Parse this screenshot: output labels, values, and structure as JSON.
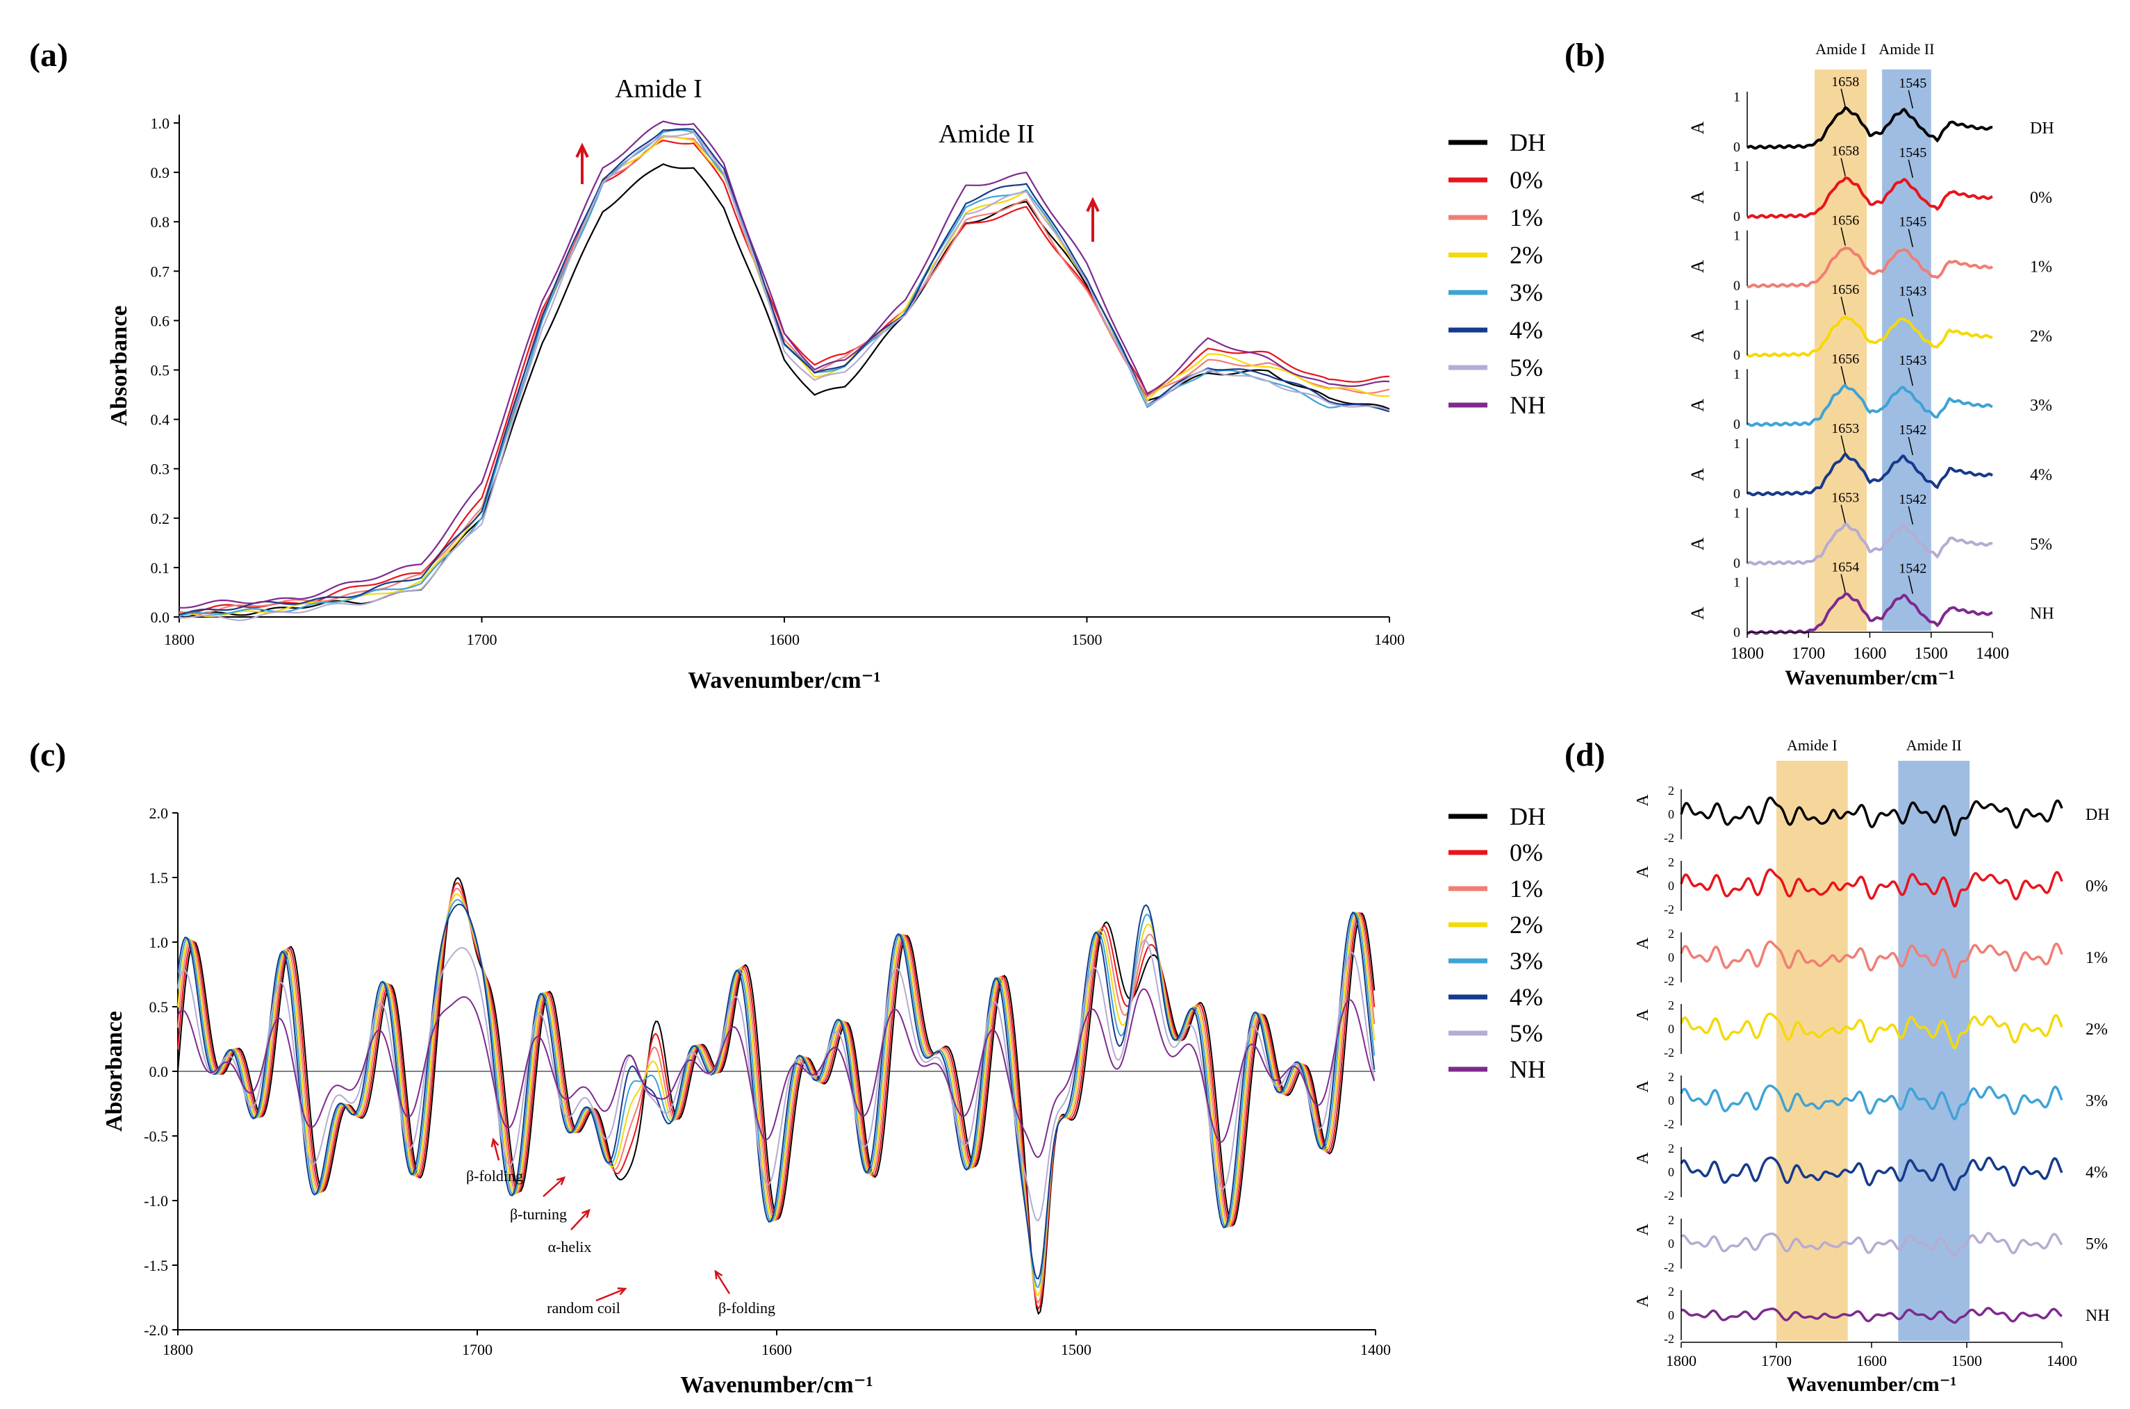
{
  "colors": {
    "DH": "#000000",
    "0%": "#e8141c",
    "1%": "#f07e74",
    "2%": "#f5d90a",
    "3%": "#3fa3d6",
    "4%": "#163a8c",
    "5%": "#b6acd2",
    "NH": "#7e2a8e",
    "amide1_band": "#f6d79b",
    "amide2_band": "#9fbde3",
    "arrow": "#d4121b"
  },
  "chart_data": [
    {
      "panel_label": "(a)",
      "type": "line",
      "xlabel": "Wavenumber/cm⁻¹",
      "ylabel": "Absorbance",
      "xlim": [
        1800,
        1400
      ],
      "ylim": [
        0,
        1.0
      ],
      "x_ticks": [
        "1800",
        "1700",
        "1600",
        "1500",
        "1400"
      ],
      "y_ticks": [
        "0.0",
        "0.1",
        "0.2",
        "0.3",
        "0.4",
        "0.5",
        "0.6",
        "0.7",
        "0.8",
        "0.9",
        "1.0"
      ],
      "annotations": [
        "Amide I",
        "Amide  II"
      ],
      "legend": [
        "DH",
        "0%",
        "1%",
        "2%",
        "3%",
        "4%",
        "5%",
        "NH"
      ],
      "series": [
        {
          "name": "DH",
          "x": [
            1800,
            1780,
            1760,
            1740,
            1720,
            1700,
            1680,
            1660,
            1640,
            1630,
            1620,
            1600,
            1590,
            1580,
            1560,
            1540,
            1520,
            1500,
            1480,
            1460,
            1440,
            1420,
            1400
          ],
          "y": [
            0.0,
            0.01,
            0.02,
            0.03,
            0.06,
            0.2,
            0.56,
            0.82,
            0.92,
            0.91,
            0.83,
            0.52,
            0.45,
            0.47,
            0.61,
            0.8,
            0.84,
            0.67,
            0.44,
            0.49,
            0.5,
            0.44,
            0.42
          ]
        },
        {
          "name": "0%",
          "x": [
            1800,
            1780,
            1760,
            1740,
            1720,
            1700,
            1680,
            1660,
            1640,
            1630,
            1620,
            1600,
            1590,
            1580,
            1560,
            1540,
            1520,
            1500,
            1480,
            1460,
            1440,
            1420,
            1400
          ],
          "y": [
            0.01,
            0.02,
            0.03,
            0.06,
            0.09,
            0.24,
            0.62,
            0.88,
            0.96,
            0.96,
            0.88,
            0.57,
            0.51,
            0.53,
            0.62,
            0.79,
            0.83,
            0.66,
            0.45,
            0.54,
            0.53,
            0.48,
            0.48
          ]
        },
        {
          "name": "1%",
          "x": [
            1800,
            1780,
            1760,
            1740,
            1720,
            1700,
            1680,
            1660,
            1640,
            1630,
            1620,
            1600,
            1590,
            1580,
            1560,
            1540,
            1520,
            1500,
            1480,
            1460,
            1440,
            1420,
            1400
          ],
          "y": [
            0.01,
            0.02,
            0.03,
            0.05,
            0.08,
            0.22,
            0.61,
            0.88,
            0.97,
            0.97,
            0.89,
            0.56,
            0.5,
            0.52,
            0.62,
            0.8,
            0.84,
            0.66,
            0.44,
            0.52,
            0.51,
            0.46,
            0.46
          ]
        },
        {
          "name": "2%",
          "x": [
            1800,
            1780,
            1760,
            1740,
            1720,
            1700,
            1680,
            1660,
            1640,
            1630,
            1620,
            1600,
            1590,
            1580,
            1560,
            1540,
            1520,
            1500,
            1480,
            1460,
            1440,
            1420,
            1400
          ],
          "y": [
            0.0,
            0.01,
            0.02,
            0.04,
            0.07,
            0.21,
            0.6,
            0.88,
            0.97,
            0.97,
            0.89,
            0.55,
            0.49,
            0.51,
            0.62,
            0.82,
            0.86,
            0.68,
            0.44,
            0.53,
            0.51,
            0.46,
            0.45
          ]
        },
        {
          "name": "3%",
          "x": [
            1800,
            1780,
            1760,
            1740,
            1720,
            1700,
            1680,
            1660,
            1640,
            1630,
            1620,
            1600,
            1590,
            1580,
            1560,
            1540,
            1520,
            1500,
            1480,
            1460,
            1440,
            1420,
            1400
          ],
          "y": [
            0.0,
            0.01,
            0.02,
            0.04,
            0.07,
            0.2,
            0.6,
            0.88,
            0.98,
            0.98,
            0.9,
            0.55,
            0.49,
            0.51,
            0.62,
            0.83,
            0.87,
            0.68,
            0.43,
            0.5,
            0.48,
            0.43,
            0.42
          ]
        },
        {
          "name": "4%",
          "x": [
            1800,
            1780,
            1760,
            1740,
            1720,
            1700,
            1680,
            1660,
            1640,
            1630,
            1620,
            1600,
            1590,
            1580,
            1560,
            1540,
            1520,
            1500,
            1480,
            1460,
            1440,
            1420,
            1400
          ],
          "y": [
            0.01,
            0.02,
            0.03,
            0.05,
            0.08,
            0.22,
            0.61,
            0.89,
            0.99,
            0.98,
            0.91,
            0.56,
            0.49,
            0.51,
            0.62,
            0.84,
            0.88,
            0.69,
            0.43,
            0.51,
            0.49,
            0.44,
            0.42
          ]
        },
        {
          "name": "5%",
          "x": [
            1800,
            1780,
            1760,
            1740,
            1720,
            1700,
            1680,
            1660,
            1640,
            1630,
            1620,
            1600,
            1590,
            1580,
            1560,
            1540,
            1520,
            1500,
            1480,
            1460,
            1440,
            1420,
            1400
          ],
          "y": [
            0.0,
            0.0,
            0.01,
            0.03,
            0.06,
            0.19,
            0.59,
            0.88,
            0.98,
            0.98,
            0.9,
            0.54,
            0.48,
            0.5,
            0.61,
            0.82,
            0.86,
            0.68,
            0.43,
            0.5,
            0.48,
            0.43,
            0.42
          ]
        },
        {
          "name": "NH",
          "x": [
            1800,
            1780,
            1760,
            1740,
            1720,
            1700,
            1680,
            1660,
            1640,
            1630,
            1620,
            1600,
            1590,
            1580,
            1560,
            1540,
            1520,
            1500,
            1480,
            1460,
            1440,
            1420,
            1400
          ],
          "y": [
            0.02,
            0.03,
            0.04,
            0.07,
            0.11,
            0.27,
            0.64,
            0.91,
            1.0,
            1.0,
            0.92,
            0.57,
            0.5,
            0.52,
            0.64,
            0.87,
            0.9,
            0.71,
            0.45,
            0.56,
            0.52,
            0.47,
            0.47
          ]
        }
      ]
    },
    {
      "panel_label": "(b)",
      "type": "line",
      "xlabel": "Wavenumber/cm⁻¹",
      "ylabel": "A",
      "xlim": [
        1800,
        1400
      ],
      "x_ticks": [
        "1800",
        "1700",
        "1600",
        "1500",
        "1400"
      ],
      "band_labels": [
        "Amide I",
        "Amide  II"
      ],
      "bands": [
        [
          1690,
          1605
        ],
        [
          1580,
          1500
        ]
      ],
      "panels": [
        {
          "name": "DH",
          "peak1": "1658",
          "peak2": "1545"
        },
        {
          "name": "0%",
          "peak1": "1658",
          "peak2": "1545"
        },
        {
          "name": "1%",
          "peak1": "1656",
          "peak2": "1545"
        },
        {
          "name": "2%",
          "peak1": "1656",
          "peak2": "1543"
        },
        {
          "name": "3%",
          "peak1": "1656",
          "peak2": "1543"
        },
        {
          "name": "4%",
          "peak1": "1653",
          "peak2": "1542"
        },
        {
          "name": "5%",
          "peak1": "1653",
          "peak2": "1542"
        },
        {
          "name": "NH",
          "peak1": "1654",
          "peak2": "1542"
        }
      ],
      "y_ticks": [
        "0",
        "1"
      ]
    },
    {
      "panel_label": "(c)",
      "type": "line",
      "xlabel": "Wavenumber/cm⁻¹",
      "ylabel": "Absorbance",
      "xlim": [
        1800,
        1400
      ],
      "ylim": [
        -2.0,
        2.0
      ],
      "x_ticks": [
        "1800",
        "1700",
        "1600",
        "1500",
        "1400"
      ],
      "y_ticks": [
        "-2.0",
        "-1.5",
        "-1.0",
        "-0.5",
        "0.0",
        "0.5",
        "1.0",
        "1.5",
        "2.0"
      ],
      "annotations": [
        "β-folding",
        "β-turning",
        "α-helix",
        "random coil",
        "β-folding"
      ],
      "legend": [
        "DH",
        "0%",
        "1%",
        "2%",
        "3%",
        "4%",
        "5%",
        "NH"
      ]
    },
    {
      "panel_label": "(d)",
      "type": "line",
      "xlabel": "Wavenumber/cm⁻¹",
      "ylabel": "A",
      "xlim": [
        1800,
        1400
      ],
      "x_ticks": [
        "1800",
        "1700",
        "1600",
        "1500",
        "1400"
      ],
      "band_labels": [
        "Amide I",
        "Amide  II"
      ],
      "bands": [
        [
          1700,
          1625
        ],
        [
          1572,
          1497
        ]
      ],
      "panels": [
        {
          "name": "DH"
        },
        {
          "name": "0%"
        },
        {
          "name": "1%"
        },
        {
          "name": "2%"
        },
        {
          "name": "3%"
        },
        {
          "name": "4%"
        },
        {
          "name": "5%"
        },
        {
          "name": "NH"
        }
      ],
      "y_ticks": [
        "-2",
        "0",
        "2"
      ]
    }
  ]
}
